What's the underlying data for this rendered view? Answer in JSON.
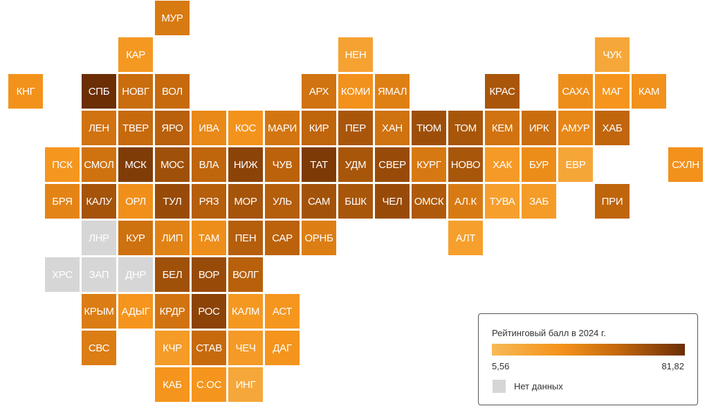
{
  "legend": {
    "title": "Рейтинговый балл в 2024 г.",
    "min": "5,56",
    "max": "81,82",
    "no_data_label": "Нет данных",
    "gradient_start": "#f7b955",
    "gradient_end": "#6b2e05",
    "no_data_color": "#d6d6d6"
  },
  "scale": {
    "min": 5.56,
    "max": 81.82
  },
  "regions": [
    {
      "code": "МУР",
      "score": 45.9
    },
    {
      "code": "КАР",
      "score": 29.4
    },
    {
      "code": "НЕН",
      "score": 21.8
    },
    {
      "code": "ЧУК",
      "score": 18.8
    },
    {
      "code": "КНГ",
      "score": 33.2
    },
    {
      "code": "СПБ",
      "score": 81.82
    },
    {
      "code": "НОВГ",
      "score": 52.5
    },
    {
      "code": "ВОЛ",
      "score": 54.3
    },
    {
      "code": "АРХ",
      "score": 49.4
    },
    {
      "code": "КОМИ",
      "score": 33.6
    },
    {
      "code": "ЯМАЛ",
      "score": 42.5
    },
    {
      "code": "КРАС",
      "score": 63.2
    },
    {
      "code": "САХА",
      "score": 35.3
    },
    {
      "code": "МАГ",
      "score": 31.8
    },
    {
      "code": "КАМ",
      "score": 33.8
    },
    {
      "code": "ЛЕН",
      "score": 49.2
    },
    {
      "code": "ТВЕР",
      "score": 54.3
    },
    {
      "code": "ЯРО",
      "score": 58.7
    },
    {
      "code": "ИВА",
      "score": 38.1
    },
    {
      "code": "КОС",
      "score": 32.9
    },
    {
      "code": "МАРИ",
      "score": 48.1
    },
    {
      "code": "КИР",
      "score": 56.6
    },
    {
      "code": "ПЕР",
      "score": 63.2
    },
    {
      "code": "ХАН",
      "score": 49.9
    },
    {
      "code": "ТЮМ",
      "score": 66.8
    },
    {
      "code": "ТОМ",
      "score": 63.6
    },
    {
      "code": "КЕМ",
      "score": 49.2
    },
    {
      "code": "ИРК",
      "score": 52.5
    },
    {
      "code": "АМУР",
      "score": 39.0
    },
    {
      "code": "ХАБ",
      "score": 56.1
    },
    {
      "code": "ПСК",
      "score": 30.8
    },
    {
      "code": "СМОЛ",
      "score": 49.9
    },
    {
      "code": "МСК",
      "score": 75.5
    },
    {
      "code": "МОС",
      "score": 66.3
    },
    {
      "code": "ВЛА",
      "score": 56.6
    },
    {
      "code": "НИЖ",
      "score": 72.2
    },
    {
      "code": "ЧУВ",
      "score": 57.8
    },
    {
      "code": "ТАТ",
      "score": 76.4
    },
    {
      "code": "УДМ",
      "score": 63.6
    },
    {
      "code": "СВЕР",
      "score": 68.4
    },
    {
      "code": "КУРГ",
      "score": 46.3
    },
    {
      "code": "НОВО",
      "score": 63.6
    },
    {
      "code": "ХАК",
      "score": 27.8
    },
    {
      "code": "БУР",
      "score": 36.0
    },
    {
      "code": "ЕВР",
      "score": 19.5
    },
    {
      "code": "СХЛН",
      "score": 33.6
    },
    {
      "code": "БРЯ",
      "score": 40.4
    },
    {
      "code": "КАЛУ",
      "score": 64.4
    },
    {
      "code": "ОРЛ",
      "score": 34.4
    },
    {
      "code": "ТУЛ",
      "score": 68.4
    },
    {
      "code": "РЯЗ",
      "score": 59.6
    },
    {
      "code": "МОР",
      "score": 64.4
    },
    {
      "code": "УЛЬ",
      "score": 59.6
    },
    {
      "code": "САМ",
      "score": 64.9
    },
    {
      "code": "БШК",
      "score": 63.6
    },
    {
      "code": "ЧЕЛ",
      "score": 68.4
    },
    {
      "code": "ОМСК",
      "score": 61.5
    },
    {
      "code": "АЛ.К",
      "score": 45.7
    },
    {
      "code": "ТУВА",
      "score": 24.4
    },
    {
      "code": "ЗАБ",
      "score": 26.9
    },
    {
      "code": "ПРИ",
      "score": 56.6
    },
    {
      "code": "ЛНР",
      "score": null
    },
    {
      "code": "КУР",
      "score": 50.5
    },
    {
      "code": "ЛИП",
      "score": 41.5
    },
    {
      "code": "ТАМ",
      "score": 35.3
    },
    {
      "code": "ПЕН",
      "score": 59.6
    },
    {
      "code": "САР",
      "score": 57.8
    },
    {
      "code": "ОРНБ",
      "score": 43.7
    },
    {
      "code": "АЛТ",
      "score": 24.4
    },
    {
      "code": "ХРС",
      "score": null
    },
    {
      "code": "ЗАП",
      "score": null
    },
    {
      "code": "ДНР",
      "score": null
    },
    {
      "code": "БЕЛ",
      "score": 66.3
    },
    {
      "code": "ВОР",
      "score": 68.4
    },
    {
      "code": "ВОЛГ",
      "score": 58.7
    },
    {
      "code": "КРЫМ",
      "score": 44.4
    },
    {
      "code": "АДЫГ",
      "score": 31.8
    },
    {
      "code": "КРДР",
      "score": 49.2
    },
    {
      "code": "РОС",
      "score": 72.2
    },
    {
      "code": "КАЛМ",
      "score": 29.4
    },
    {
      "code": "АСТ",
      "score": 30.8
    },
    {
      "code": "СВС",
      "score": 44.4
    },
    {
      "code": "КЧР",
      "score": 26.9
    },
    {
      "code": "СТАВ",
      "score": 54.3
    },
    {
      "code": "ЧЕЧ",
      "score": 27.8
    },
    {
      "code": "ДАГ",
      "score": 32.5
    },
    {
      "code": "КАБ",
      "score": 31.8
    },
    {
      "code": "С.ОС",
      "score": 31.8
    },
    {
      "code": "ИНГ",
      "score": 18.8
    }
  ]
}
